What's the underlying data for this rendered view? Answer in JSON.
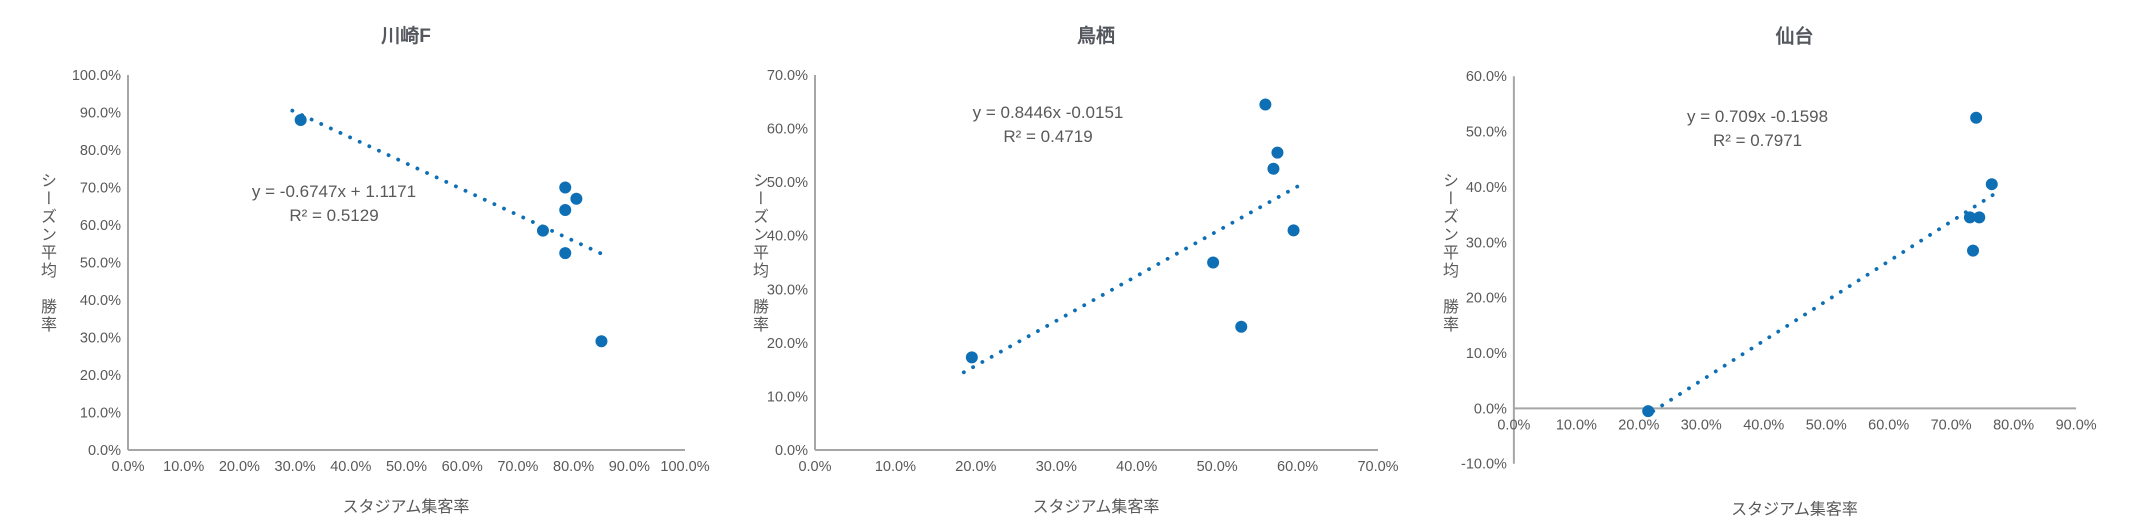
{
  "page": {
    "background": "#ffffff"
  },
  "colors": {
    "point_blue": "#0E6FB5",
    "trend_blue": "#0E6FB5",
    "title_gray": "#54575E",
    "text_gray": "#595959",
    "axis_gray": "#A6A6A6"
  },
  "chart_data": [
    {
      "type": "scatter",
      "title": "川崎F",
      "equation": "y = -0.6747x + 1.1171",
      "r_squared": "R² = 0.5129",
      "xlabel": "スタジアム集客率",
      "ylabel": "シーズン平均　勝率",
      "xlim": [
        0,
        100
      ],
      "ylim": [
        0,
        100
      ],
      "tick_step": 10,
      "tick_format": "percent_one_decimal",
      "grid": false,
      "points": [
        [
          31,
          88
        ],
        [
          78.5,
          70
        ],
        [
          80.5,
          67
        ],
        [
          78.5,
          64
        ],
        [
          74.5,
          58.5
        ],
        [
          78.5,
          52.5
        ],
        [
          85,
          29
        ]
      ],
      "trend_draw": {
        "x1": 29.5,
        "y1": 90.5,
        "x2": 85.5,
        "y2": 52.0
      }
    },
    {
      "type": "scatter",
      "title": "鳥栖",
      "equation": "y = 0.8446x -0.0151",
      "r_squared": "R² = 0.4719",
      "xlabel": "スタジアム集客率",
      "ylabel": "シーズン平均　勝率",
      "xlim": [
        0,
        70
      ],
      "ylim": [
        0,
        70
      ],
      "tick_step": 10,
      "tick_format": "percent_one_decimal",
      "grid": false,
      "points": [
        [
          19.5,
          17.3
        ],
        [
          56,
          64.5
        ],
        [
          57.5,
          55.5
        ],
        [
          57,
          52.5
        ],
        [
          59.5,
          41
        ],
        [
          49.5,
          35
        ],
        [
          53,
          23
        ]
      ],
      "trend_draw": {
        "x1": 18.5,
        "y1": 14.5,
        "x2": 60,
        "y2": 49.2
      }
    },
    {
      "type": "scatter",
      "title": "仙台",
      "equation": "y = 0.709x -0.1598",
      "r_squared": "R² = 0.7971",
      "xlabel": "スタジアム集客率",
      "ylabel": "シーズン平均　勝率",
      "xlim": [
        0,
        90
      ],
      "ylim": [
        -10,
        60
      ],
      "tick_step": 10,
      "tick_format": "percent_one_decimal",
      "grid": false,
      "points": [
        [
          21.5,
          -0.5
        ],
        [
          74,
          52.5
        ],
        [
          76.5,
          40.5
        ],
        [
          73,
          34.5
        ],
        [
          74.5,
          34.5
        ],
        [
          73.5,
          28.5
        ]
      ],
      "trend_draw": {
        "x1": 22.3,
        "y1": -0.5,
        "x2": 78,
        "y2": 39.5
      }
    }
  ]
}
